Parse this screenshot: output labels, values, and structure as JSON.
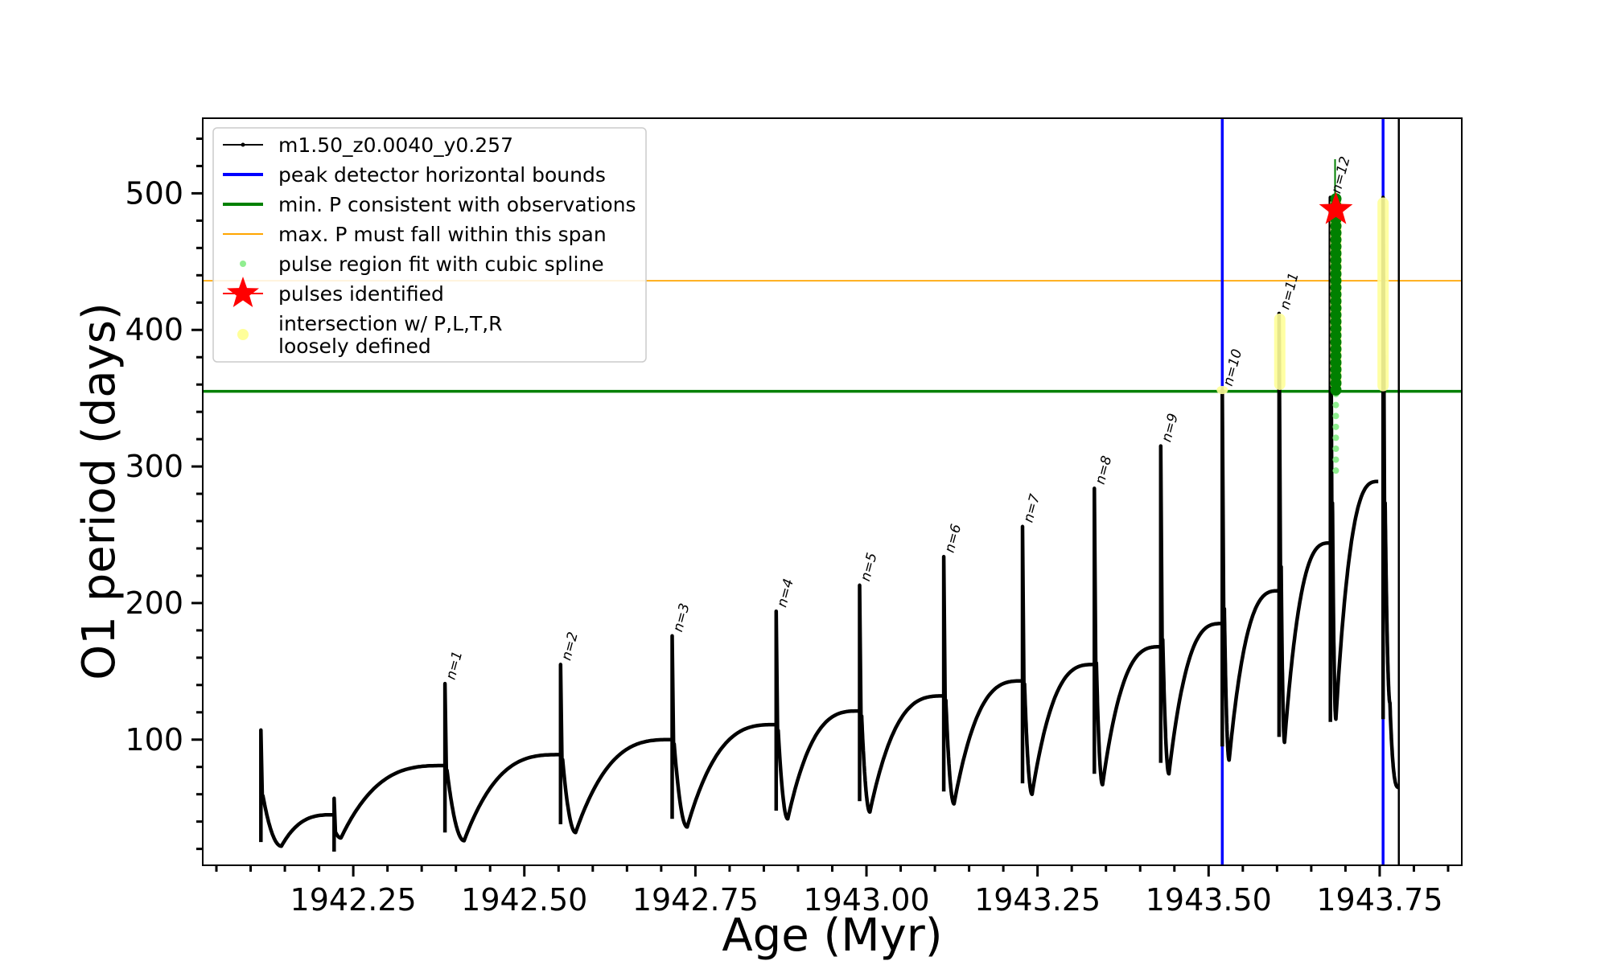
{
  "chart_data": {
    "type": "line",
    "title": "",
    "xlabel": "Age (Myr)",
    "ylabel": "O1 period (days)",
    "xlim": [
      1942.03,
      1943.87
    ],
    "ylim": [
      8,
      555
    ],
    "x_ticks": [
      1942.25,
      1942.5,
      1942.75,
      1943.0,
      1943.25,
      1943.5,
      1943.75
    ],
    "x_tick_labels": [
      "1942.25",
      "1942.50",
      "1942.75",
      "1943.00",
      "1943.25",
      "1943.50",
      "1943.75"
    ],
    "y_ticks": [
      100,
      200,
      300,
      400,
      500
    ],
    "y_tick_labels": [
      "100",
      "200",
      "300",
      "400",
      "500"
    ],
    "grid": false,
    "legend_position": "top-left",
    "legend": [
      {
        "label": "m1.50_z0.0040_y0.257",
        "kind": "line-marker",
        "color": "#000000"
      },
      {
        "label": "peak detector horizontal bounds",
        "kind": "line",
        "color": "#0000ff"
      },
      {
        "label": "min. P consistent with observations",
        "kind": "line",
        "color": "#008000"
      },
      {
        "label": "max. P must fall within this span",
        "kind": "line",
        "color": "#ffa500"
      },
      {
        "label": "pulse region fit with cubic spline",
        "kind": "dot",
        "color": "#90ee90"
      },
      {
        "label": "pulses identified",
        "kind": "star",
        "color": "#ff0000"
      },
      {
        "label": "intersection w/ P,L,T,R",
        "label2": "loosely defined",
        "kind": "dot",
        "color": "#ffff99"
      }
    ],
    "vertical_lines": [
      {
        "x": 1943.52,
        "color": "#0000ff",
        "role": "peak detector bound"
      },
      {
        "x": 1943.755,
        "color": "#0000ff",
        "role": "peak detector bound"
      },
      {
        "x": 1943.778,
        "color": "#000000",
        "role": "end of track"
      }
    ],
    "horizontal_lines": [
      {
        "y": 355,
        "color": "#008000",
        "role": "min. P"
      },
      {
        "y": 436,
        "color": "#ffa500",
        "role": "max. P"
      }
    ],
    "series": [
      {
        "name": "m1.50_z0.0040_y0.257",
        "color": "#000000",
        "pulses": [
          {
            "label": "",
            "start": 1942.115,
            "peak": 107,
            "drop": 25,
            "trough_x": 1942.145,
            "trough": 22,
            "end_x": 1942.222,
            "end_y": 45
          },
          {
            "label": "",
            "start": 1942.222,
            "peak": 57,
            "drop": 18,
            "trough_x": 1942.232,
            "trough": 28,
            "end_x": 1942.384,
            "end_y": 81
          },
          {
            "label": "n=1",
            "start": 1942.384,
            "peak": 141,
            "drop": 32,
            "trough_x": 1942.412,
            "trough": 26,
            "end_x": 1942.553,
            "end_y": 89
          },
          {
            "label": "n=2",
            "start": 1942.553,
            "peak": 155,
            "drop": 38,
            "trough_x": 1942.575,
            "trough": 32,
            "end_x": 1942.716,
            "end_y": 100
          },
          {
            "label": "n=3",
            "start": 1942.716,
            "peak": 176,
            "drop": 42,
            "trough_x": 1942.738,
            "trough": 36,
            "end_x": 1942.868,
            "end_y": 111
          },
          {
            "label": "n=4",
            "start": 1942.868,
            "peak": 194,
            "drop": 48,
            "trough_x": 1942.885,
            "trough": 42,
            "end_x": 1942.99,
            "end_y": 121
          },
          {
            "label": "n=5",
            "start": 1942.99,
            "peak": 213,
            "drop": 55,
            "trough_x": 1943.005,
            "trough": 47,
            "end_x": 1943.113,
            "end_y": 132
          },
          {
            "label": "n=6",
            "start": 1943.113,
            "peak": 234,
            "drop": 62,
            "trough_x": 1943.128,
            "trough": 53,
            "end_x": 1943.228,
            "end_y": 143
          },
          {
            "label": "n=7",
            "start": 1943.228,
            "peak": 256,
            "drop": 68,
            "trough_x": 1943.242,
            "trough": 60,
            "end_x": 1943.333,
            "end_y": 155
          },
          {
            "label": "n=8",
            "start": 1943.333,
            "peak": 284,
            "drop": 75,
            "trough_x": 1943.345,
            "trough": 67,
            "end_x": 1943.43,
            "end_y": 168
          },
          {
            "label": "n=9",
            "start": 1943.43,
            "peak": 315,
            "drop": 83,
            "trough_x": 1943.442,
            "trough": 75,
            "end_x": 1943.52,
            "end_y": 185
          },
          {
            "label": "n=10",
            "start": 1943.52,
            "peak": 356,
            "drop": 95,
            "trough_x": 1943.53,
            "trough": 85,
            "end_x": 1943.603,
            "end_y": 209
          },
          {
            "label": "n=11",
            "start": 1943.603,
            "peak": 412,
            "drop": 102,
            "trough_x": 1943.611,
            "trough": 98,
            "end_x": 1943.678,
            "end_y": 244
          },
          {
            "label": "n=12",
            "start": 1943.678,
            "peak": 497,
            "drop": 113,
            "trough_x": 1943.686,
            "trough": 115,
            "end_x": 1943.748,
            "end_y": 289
          },
          {
            "label": "",
            "start": 1943.755,
            "peak": 497,
            "drop": 115,
            "trough_x": 1943.765,
            "trough": 127,
            "end_x": 1943.778,
            "end_y": 65
          }
        ]
      }
    ],
    "spline_regions": [
      {
        "x": 1943.686,
        "y_from": 297,
        "y_to": 497,
        "color": "#90ee90"
      }
    ],
    "loose_regions": [
      {
        "x": 1943.52,
        "y_from": 353,
        "y_to": 359,
        "color": "#ffff99"
      },
      {
        "x": 1943.604,
        "y_from": 356,
        "y_to": 412,
        "color": "#ffff99"
      },
      {
        "x": 1943.686,
        "y_from": 356,
        "y_to": 497,
        "color": "#ffff99"
      },
      {
        "x": 1943.755,
        "y_from": 355,
        "y_to": 497,
        "color": "#ffff99"
      }
    ],
    "green_markers": [
      {
        "x": 1943.686,
        "y_from": 356,
        "y_to": 497,
        "color": "#008000"
      }
    ],
    "pulses_identified": [
      {
        "x": 1943.686,
        "y": 488,
        "color": "#ff0000"
      }
    ]
  }
}
